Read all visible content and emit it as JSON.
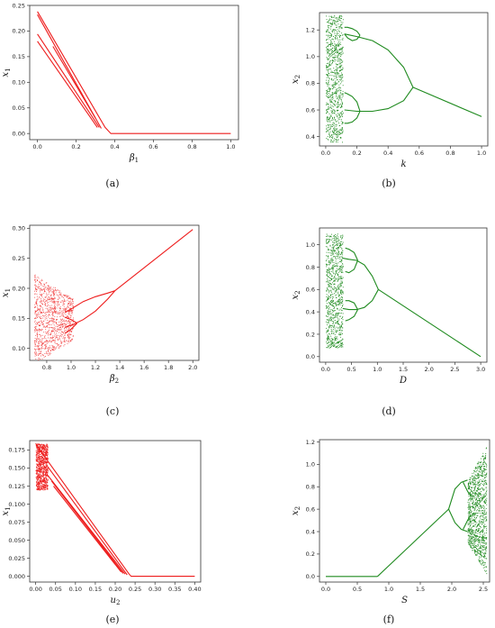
{
  "colors": {
    "red": "#ee1c1c",
    "green": "#1e8a1e"
  },
  "chart_data": [
    {
      "id": "a",
      "type": "scatter",
      "caption": "(a)",
      "color": "#ee1c1c",
      "xlabel": "β",
      "xlabel_sub": "1",
      "ylabel": "x",
      "ylabel_sub": "1",
      "xlim": [
        -0.04,
        1.04
      ],
      "ylim": [
        -0.012,
        0.25
      ],
      "xticks": [
        "0.0",
        "0.2",
        "0.4",
        "0.6",
        "0.8",
        "1.0"
      ],
      "xtick_values": [
        0,
        0.2,
        0.4,
        0.6,
        0.8,
        1.0
      ],
      "yticks": [
        "0.00",
        "0.05",
        "0.10",
        "0.15",
        "0.20",
        "0.25"
      ],
      "ytick_values": [
        0,
        0.05,
        0.1,
        0.15,
        0.2,
        0.25
      ],
      "series": [
        {
          "x": [
            0.0,
            0.35,
            0.38,
            1.0
          ],
          "y": [
            0.238,
            0.012,
            0.0,
            0.0
          ]
        },
        {
          "x": [
            0.0,
            0.33
          ],
          "y": [
            0.232,
            0.01
          ]
        },
        {
          "x": [
            0.0,
            0.32
          ],
          "y": [
            0.194,
            0.012
          ]
        },
        {
          "x": [
            0.0,
            0.31
          ],
          "y": [
            0.18,
            0.012
          ]
        },
        {
          "x": [
            0.08,
            0.3
          ],
          "y": [
            0.17,
            0.03
          ]
        }
      ]
    },
    {
      "id": "b",
      "type": "scatter",
      "caption": "(b)",
      "color": "#1e8a1e",
      "xlabel": "k",
      "xlabel_sub": "",
      "ylabel": "x",
      "ylabel_sub": "2",
      "xlim": [
        -0.04,
        1.04
      ],
      "ylim": [
        0.33,
        1.33
      ],
      "xticks": [
        "0.0",
        "0.2",
        "0.4",
        "0.6",
        "0.8",
        "1.0"
      ],
      "xtick_values": [
        0,
        0.2,
        0.4,
        0.6,
        0.8,
        1.0
      ],
      "yticks": [
        "0.4",
        "0.6",
        "0.8",
        "1.0",
        "1.2"
      ],
      "ytick_values": [
        0.4,
        0.6,
        0.8,
        1.0,
        1.2
      ],
      "band": {
        "x0": 0.0,
        "x1": 0.11,
        "ylo": 0.36,
        "yhi": 1.31
      },
      "series": [
        {
          "x": [
            0.56,
            1.0
          ],
          "y": [
            0.77,
            0.55
          ]
        },
        {
          "x": [
            0.56,
            0.5,
            0.4,
            0.3,
            0.2,
            0.12
          ],
          "y": [
            0.77,
            0.92,
            1.05,
            1.12,
            1.15,
            1.17
          ]
        },
        {
          "x": [
            0.56,
            0.5,
            0.4,
            0.3,
            0.2,
            0.12
          ],
          "y": [
            0.77,
            0.67,
            0.61,
            0.59,
            0.59,
            0.6
          ]
        },
        {
          "x": [
            0.22,
            0.2,
            0.17,
            0.14,
            0.12
          ],
          "y": [
            1.16,
            1.13,
            1.12,
            1.14,
            1.17
          ]
        },
        {
          "x": [
            0.22,
            0.2,
            0.17,
            0.14,
            0.12
          ],
          "y": [
            1.16,
            1.19,
            1.21,
            1.22,
            1.22
          ]
        },
        {
          "x": [
            0.22,
            0.2,
            0.17,
            0.14,
            0.12
          ],
          "y": [
            0.59,
            0.66,
            0.7,
            0.72,
            0.73
          ]
        },
        {
          "x": [
            0.22,
            0.2,
            0.17,
            0.14,
            0.12
          ],
          "y": [
            0.59,
            0.54,
            0.51,
            0.5,
            0.5
          ]
        }
      ]
    },
    {
      "id": "c",
      "type": "scatter",
      "caption": "(c)",
      "color": "#ee1c1c",
      "xlabel": "β",
      "xlabel_sub": "2",
      "ylabel": "x",
      "ylabel_sub": "1",
      "xlim": [
        0.66,
        2.05
      ],
      "ylim": [
        0.08,
        0.305
      ],
      "xticks": [
        "0.8",
        "1.0",
        "1.2",
        "1.4",
        "1.6",
        "1.8",
        "2.0"
      ],
      "xtick_values": [
        0.8,
        1.0,
        1.2,
        1.4,
        1.6,
        1.8,
        2.0
      ],
      "yticks": [
        "0.10",
        "0.15",
        "0.20",
        "0.25",
        "0.30"
      ],
      "ytick_values": [
        0.1,
        0.15,
        0.2,
        0.25,
        0.3
      ],
      "cloud": {
        "x0": 0.7,
        "x1": 1.02,
        "ylo": 0.085,
        "yhi": 0.235
      },
      "series": [
        {
          "x": [
            1.36,
            2.0
          ],
          "y": [
            0.196,
            0.298
          ]
        },
        {
          "x": [
            1.36,
            1.3,
            1.2,
            1.1,
            1.02,
            0.95
          ],
          "y": [
            0.196,
            0.192,
            0.186,
            0.178,
            0.168,
            0.16
          ]
        },
        {
          "x": [
            1.36,
            1.3,
            1.2,
            1.1,
            1.02,
            0.95
          ],
          "y": [
            0.196,
            0.182,
            0.162,
            0.148,
            0.14,
            0.135
          ]
        },
        {
          "x": [
            1.05,
            1.0,
            0.95
          ],
          "y": [
            0.142,
            0.132,
            0.125
          ]
        },
        {
          "x": [
            1.05,
            1.0,
            0.95
          ],
          "y": [
            0.142,
            0.148,
            0.152
          ]
        }
      ]
    },
    {
      "id": "d",
      "type": "scatter",
      "caption": "(d)",
      "color": "#1e8a1e",
      "xlabel": "D",
      "xlabel_sub": "",
      "ylabel": "x",
      "ylabel_sub": "2",
      "xlim": [
        -0.12,
        3.12
      ],
      "ylim": [
        -0.05,
        1.15
      ],
      "xticks": [
        "0.0",
        "0.5",
        "1.0",
        "1.5",
        "2.0",
        "2.5",
        "3.0"
      ],
      "xtick_values": [
        0,
        0.5,
        1.0,
        1.5,
        2.0,
        2.5,
        3.0
      ],
      "yticks": [
        "0.0",
        "0.2",
        "0.4",
        "0.6",
        "0.8",
        "1.0"
      ],
      "ytick_values": [
        0,
        0.2,
        0.4,
        0.6,
        0.8,
        1.0
      ],
      "band": {
        "x0": 0.0,
        "x1": 0.33,
        "ylo": 0.08,
        "yhi": 1.1
      },
      "series": [
        {
          "x": [
            1.02,
            3.0
          ],
          "y": [
            0.6,
            0.0
          ]
        },
        {
          "x": [
            1.02,
            0.9,
            0.75,
            0.6,
            0.45,
            0.33
          ],
          "y": [
            0.6,
            0.72,
            0.82,
            0.86,
            0.87,
            0.88
          ]
        },
        {
          "x": [
            1.02,
            0.9,
            0.75,
            0.6,
            0.45,
            0.33
          ],
          "y": [
            0.6,
            0.5,
            0.44,
            0.42,
            0.42,
            0.43
          ]
        },
        {
          "x": [
            0.62,
            0.55,
            0.45,
            0.38
          ],
          "y": [
            0.86,
            0.78,
            0.75,
            0.76
          ]
        },
        {
          "x": [
            0.62,
            0.55,
            0.45,
            0.38
          ],
          "y": [
            0.86,
            0.93,
            0.96,
            0.97
          ]
        },
        {
          "x": [
            0.62,
            0.55,
            0.45,
            0.38
          ],
          "y": [
            0.42,
            0.48,
            0.5,
            0.5
          ]
        },
        {
          "x": [
            0.62,
            0.55,
            0.45,
            0.38
          ],
          "y": [
            0.42,
            0.36,
            0.33,
            0.32
          ]
        }
      ]
    },
    {
      "id": "e",
      "type": "scatter",
      "caption": "(e)",
      "color": "#ee1c1c",
      "xlabel": "u",
      "xlabel_sub": "2",
      "ylabel": "x",
      "ylabel_sub": "1",
      "xlim": [
        -0.015,
        0.415
      ],
      "ylim": [
        -0.008,
        0.188
      ],
      "xticks": [
        "0.00",
        "0.05",
        "0.10",
        "0.15",
        "0.20",
        "0.25",
        "0.30",
        "0.35",
        "0.40"
      ],
      "xtick_values": [
        0,
        0.05,
        0.1,
        0.15,
        0.2,
        0.25,
        0.3,
        0.35,
        0.4
      ],
      "yticks": [
        "0.000",
        "0.025",
        "0.050",
        "0.075",
        "0.100",
        "0.125",
        "0.150",
        "0.175"
      ],
      "ytick_values": [
        0,
        0.025,
        0.05,
        0.075,
        0.1,
        0.125,
        0.15,
        0.175
      ],
      "band": {
        "x0": 0.0,
        "x1": 0.03,
        "ylo": 0.12,
        "yhi": 0.184
      },
      "series": [
        {
          "x": [
            0.03,
            0.235,
            0.24,
            0.4
          ],
          "y": [
            0.16,
            0.003,
            0.0,
            0.0
          ]
        },
        {
          "x": [
            0.03,
            0.23
          ],
          "y": [
            0.152,
            0.002
          ]
        },
        {
          "x": [
            0.03,
            0.225
          ],
          "y": [
            0.14,
            0.003
          ]
        },
        {
          "x": [
            0.04,
            0.22
          ],
          "y": [
            0.132,
            0.004
          ]
        },
        {
          "x": [
            0.045,
            0.215
          ],
          "y": [
            0.125,
            0.006
          ]
        },
        {
          "x": [
            0.0,
            0.03
          ],
          "y": [
            0.184,
            0.16
          ]
        }
      ]
    },
    {
      "id": "f",
      "type": "scatter",
      "caption": "(f)",
      "color": "#1e8a1e",
      "xlabel": "S",
      "xlabel_sub": "",
      "ylabel": "x",
      "ylabel_sub": "2",
      "xlim": [
        -0.1,
        2.6
      ],
      "ylim": [
        -0.05,
        1.22
      ],
      "xticks": [
        "0.0",
        "0.5",
        "1.0",
        "1.5",
        "2.0",
        "2.5"
      ],
      "xtick_values": [
        0,
        0.5,
        1.0,
        1.5,
        2.0,
        2.5
      ],
      "yticks": [
        "0.0",
        "0.2",
        "0.4",
        "0.6",
        "0.8",
        "1.0",
        "1.2"
      ],
      "ytick_values": [
        0,
        0.2,
        0.4,
        0.6,
        0.8,
        1.0,
        1.2
      ],
      "wedge": {
        "x0": 2.25,
        "x1": 2.55,
        "ylo0": 0.3,
        "yhi0": 0.85,
        "ylo1": 0.02,
        "yhi1": 1.17
      },
      "series": [
        {
          "x": [
            0.0,
            0.82
          ],
          "y": [
            0.0,
            0.0
          ]
        },
        {
          "x": [
            0.82,
            1.95
          ],
          "y": [
            0.0,
            0.6
          ]
        },
        {
          "x": [
            1.95,
            2.05,
            2.15,
            2.25
          ],
          "y": [
            0.6,
            0.78,
            0.84,
            0.86
          ]
        },
        {
          "x": [
            1.95,
            2.05,
            2.15,
            2.25
          ],
          "y": [
            0.6,
            0.48,
            0.42,
            0.4
          ]
        },
        {
          "x": [
            2.18,
            2.25,
            2.3
          ],
          "y": [
            0.84,
            0.76,
            0.72
          ]
        },
        {
          "x": [
            2.18,
            2.25,
            2.3
          ],
          "y": [
            0.42,
            0.5,
            0.55
          ]
        }
      ]
    }
  ]
}
